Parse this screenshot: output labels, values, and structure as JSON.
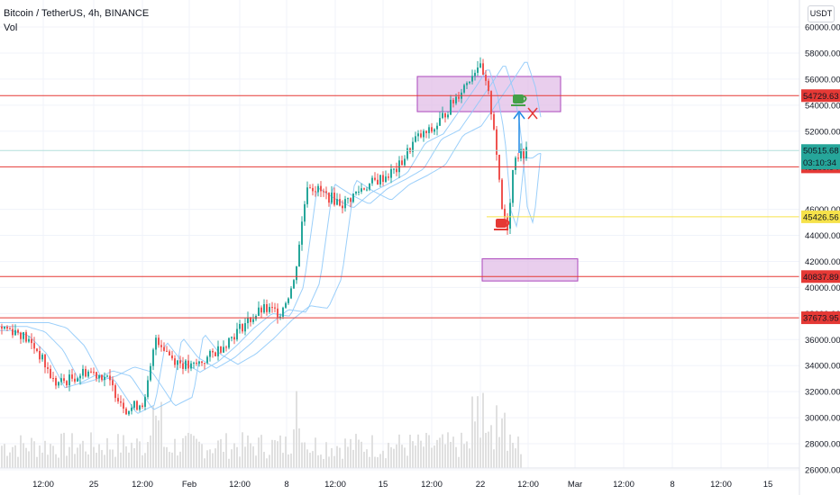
{
  "header": {
    "title": "Bitcoin / TetherUS, 4h, BINANCE",
    "vol_label": "Vol",
    "currency": "USDT"
  },
  "chart_data": {
    "type": "candlestick",
    "y_axis": {
      "ticks": [
        "60000.00",
        "58000.00",
        "56000.00",
        "54000.00",
        "52000.00",
        "46000.00",
        "44000.00",
        "42000.00",
        "40000.00",
        "38000.00",
        "36000.00",
        "34000.00",
        "32000.00",
        "30000.00",
        "28000.00",
        "26000.00"
      ],
      "range": [
        26000,
        61000
      ]
    },
    "x_axis": {
      "ticks": [
        "12:00",
        "25",
        "12:00",
        "Feb",
        "12:00",
        "8",
        "12:00",
        "15",
        "12:00",
        "22",
        "12:00",
        "Mar",
        "12:00",
        "8",
        "12:00",
        "15"
      ]
    },
    "price_lines": [
      {
        "label": "54729.63",
        "value": 54729.63,
        "color": "#e53935"
      },
      {
        "label": "49260.94",
        "value": 49260.94,
        "color": "#e53935"
      },
      {
        "label": "40837.89",
        "value": 40837.89,
        "color": "#e53935"
      },
      {
        "label": "37673.95",
        "value": 37673.95,
        "color": "#e53935"
      },
      {
        "label": "45426.56",
        "value": 45426.56,
        "color": "#f6e24a"
      }
    ],
    "current_price": {
      "label": "50515.68",
      "countdown": "03:10:34",
      "color": "#26a69a"
    },
    "zones": [
      {
        "from": 53500,
        "to": 56200,
        "color": "#e1bee7"
      },
      {
        "from": 40500,
        "to": 42200,
        "color": "#e1bee7"
      }
    ],
    "colors": {
      "up": "#26a69a",
      "down": "#ef5350",
      "ma": "#90caf9",
      "volume": "#e0e0e0"
    }
  }
}
